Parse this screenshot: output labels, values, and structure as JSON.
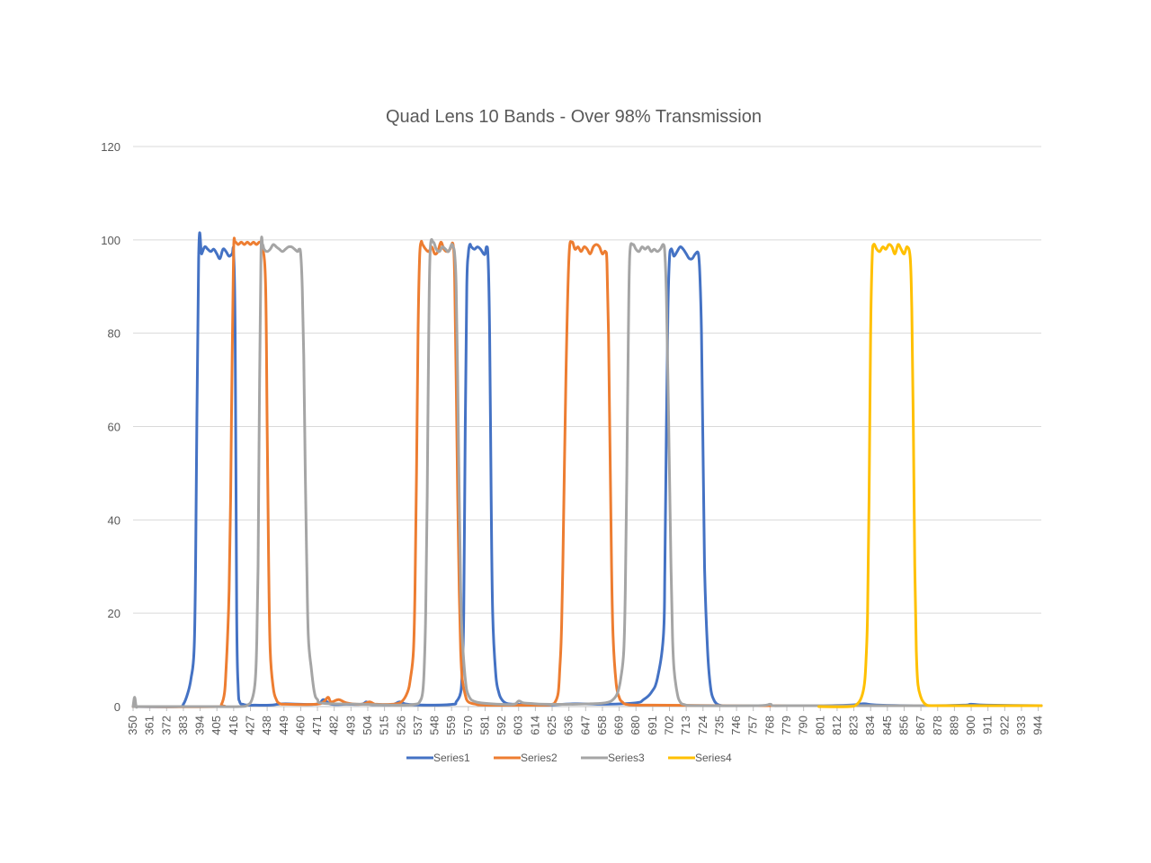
{
  "chart_data": {
    "type": "line",
    "title": "Quad Lens 10 Bands - Over 98% Transmission",
    "xlabel": "",
    "ylabel": "",
    "xlim": [
      350,
      946
    ],
    "ylim": [
      0,
      120
    ],
    "yticks": [
      0,
      20,
      40,
      60,
      80,
      100,
      120
    ],
    "xticks": [
      350,
      361,
      372,
      383,
      394,
      405,
      416,
      427,
      438,
      449,
      460,
      471,
      482,
      493,
      504,
      515,
      526,
      537,
      548,
      559,
      570,
      581,
      592,
      603,
      614,
      625,
      636,
      647,
      658,
      669,
      680,
      691,
      702,
      713,
      724,
      735,
      746,
      757,
      768,
      779,
      790,
      801,
      812,
      823,
      834,
      845,
      856,
      867,
      878,
      889,
      900,
      911,
      922,
      933,
      944
    ],
    "grid": "horizontal",
    "legend": "bottom",
    "series": [
      {
        "name": "Series1",
        "color": "#4472C4",
        "x": [
          350,
          380,
          383,
          386,
          388,
          390,
          391,
          393,
          395,
          397,
          399,
          401,
          403,
          405,
          407,
          409,
          411,
          413,
          415,
          416,
          417,
          418,
          419,
          420,
          422,
          425,
          430,
          440,
          445,
          450,
          470,
          475,
          480,
          490,
          500,
          503,
          505,
          510,
          520,
          525,
          530,
          545,
          560,
          562,
          565,
          566,
          567,
          568,
          569,
          570,
          571,
          572,
          574,
          576,
          578,
          580,
          581,
          582,
          583,
          584,
          585,
          586,
          588,
          590,
          592,
          595,
          600,
          610,
          620,
          640,
          660,
          680,
          685,
          690,
          694,
          698,
          699,
          700,
          701,
          702,
          703,
          704,
          705,
          707,
          709,
          711,
          713,
          715,
          717,
          719,
          721,
          722,
          723,
          724,
          725,
          727,
          729,
          731,
          733,
          735,
          737,
          740,
          745,
          760,
          800,
          820,
          826,
          830,
          840,
          870,
          895,
          900,
          910,
          946
        ],
        "y": [
          0,
          0,
          0.5,
          3,
          6,
          12,
          30,
          96,
          97,
          98.5,
          98,
          97.5,
          98,
          97,
          96,
          98,
          97.5,
          96.5,
          97,
          97,
          80,
          20,
          4,
          1,
          0.5,
          0.3,
          0.3,
          0.3,
          0.5,
          0.6,
          0.5,
          1.5,
          0.5,
          0.5,
          0.5,
          1,
          0.5,
          0.4,
          0.4,
          1,
          0.5,
          0.3,
          0.5,
          1,
          3,
          8,
          20,
          60,
          90,
          97,
          99,
          98.5,
          98,
          98.5,
          98,
          97,
          97,
          98.5,
          96,
          80,
          45,
          20,
          7,
          3,
          1.5,
          0.7,
          0.5,
          0.4,
          0.3,
          0.6,
          0.5,
          0.8,
          1.5,
          3,
          6,
          15,
          30,
          60,
          85,
          96,
          98,
          97.5,
          96.5,
          97.5,
          98.5,
          98,
          97,
          96,
          96,
          97,
          97,
          92,
          80,
          55,
          30,
          12,
          4,
          1.5,
          0.6,
          0.3,
          0.2,
          0.2,
          0.2,
          0.2,
          0.2,
          0.3,
          0.5,
          0.6,
          0.3,
          0.2,
          0.3,
          0.5,
          0.3,
          0.2
        ]
      },
      {
        "name": "Series2",
        "color": "#ED7D31",
        "x": [
          350,
          405,
          408,
          410,
          411,
          412,
          413,
          414,
          415,
          416,
          417,
          419,
          421,
          423,
          425,
          427,
          429,
          431,
          433,
          435,
          437,
          438,
          439,
          440,
          442,
          444,
          446,
          450,
          470,
          475,
          478,
          480,
          485,
          490,
          500,
          505,
          508,
          510,
          520,
          526,
          530,
          532,
          534,
          535,
          536,
          537,
          538,
          539,
          540,
          542,
          544,
          546,
          548,
          550,
          552,
          554,
          556,
          558,
          560,
          561,
          562,
          563,
          564,
          565,
          566,
          568,
          570,
          575,
          580,
          600,
          620,
          625,
          627,
          629,
          630,
          631,
          632,
          634,
          636,
          638,
          640,
          642,
          644,
          646,
          648,
          650,
          652,
          654,
          656,
          658,
          660,
          661,
          662,
          663,
          664,
          665,
          667,
          669,
          671,
          675,
          690,
          740,
          800,
          946
        ],
        "y": [
          0,
          0,
          0.5,
          3,
          8,
          15,
          25,
          45,
          75,
          98,
          99.5,
          99,
          99.5,
          99,
          99.5,
          99,
          99.5,
          99,
          99.5,
          98.5,
          90,
          60,
          30,
          12,
          4,
          1.5,
          0.7,
          0.5,
          0.5,
          1,
          2,
          1,
          1.5,
          0.8,
          0.5,
          1,
          0.6,
          0.5,
          0.5,
          1,
          3,
          6,
          12,
          25,
          50,
          80,
          96,
          99.5,
          99,
          98,
          97.5,
          98.5,
          97,
          97.5,
          99.5,
          98,
          97.5,
          98,
          99,
          92,
          70,
          45,
          25,
          12,
          6,
          2.5,
          1,
          0.5,
          0.3,
          0.3,
          0.3,
          0.5,
          1,
          3,
          8,
          15,
          30,
          70,
          96,
          99.5,
          98,
          98.5,
          97.5,
          98.5,
          98,
          97,
          98.5,
          99,
          98.5,
          97,
          97.5,
          95,
          80,
          55,
          30,
          15,
          5,
          2,
          1,
          0.4,
          0.3,
          0.2,
          0.2,
          0.2
        ]
      },
      {
        "name": "Series3",
        "color": "#A5A5A5",
        "x": [
          350,
          351,
          352,
          353,
          355,
          400,
          420,
          425,
          428,
          430,
          431,
          432,
          433,
          434,
          435,
          436,
          438,
          440,
          442,
          444,
          446,
          448,
          450,
          452,
          454,
          456,
          458,
          459,
          460,
          461,
          462,
          463,
          464,
          465,
          467,
          469,
          471,
          475,
          500,
          525,
          535,
          538,
          540,
          541,
          542,
          543,
          544,
          545,
          547,
          549,
          551,
          553,
          555,
          557,
          559,
          560,
          561,
          562,
          563,
          564,
          565,
          566,
          568,
          570,
          575,
          590,
          600,
          603,
          606,
          610,
          620,
          640,
          650,
          660,
          665,
          668,
          670,
          672,
          673,
          674,
          675,
          676,
          678,
          680,
          682,
          684,
          686,
          688,
          690,
          692,
          694,
          696,
          698,
          699,
          700,
          701,
          702,
          703,
          704,
          705,
          707,
          709,
          712,
          720,
          760,
          768,
          770,
          780,
          830,
          870,
          946
        ],
        "y": [
          0,
          2,
          0,
          0,
          0,
          0,
          0,
          0.3,
          1.5,
          5,
          12,
          30,
          70,
          98,
          99,
          98,
          97.5,
          98,
          99,
          98.5,
          98,
          97.5,
          98,
          98.5,
          98.5,
          98,
          97.5,
          98,
          97,
          90,
          75,
          50,
          30,
          15,
          8,
          3,
          1.5,
          0.7,
          0.5,
          0.3,
          0.5,
          1,
          3,
          8,
          20,
          45,
          80,
          98,
          99.5,
          98,
          97.5,
          98.5,
          98,
          97.5,
          99,
          98.5,
          97,
          90,
          70,
          45,
          25,
          15,
          6,
          2.5,
          1,
          0.5,
          0.5,
          1.2,
          0.8,
          0.7,
          0.5,
          0.5,
          0.6,
          0.8,
          1.5,
          3,
          6,
          12,
          25,
          50,
          80,
          97,
          99,
          98,
          97.5,
          98.5,
          98,
          98.5,
          97.5,
          98,
          97.5,
          98,
          99,
          97,
          88,
          70,
          50,
          30,
          15,
          8,
          3,
          1,
          0.4,
          0.2,
          0.2,
          0.5,
          0.2,
          0.2,
          0.2,
          0.2,
          0.2
        ]
      },
      {
        "name": "Series4",
        "color": "#FFC000",
        "x": [
          800,
          820,
          825,
          828,
          830,
          831,
          832,
          833,
          834,
          835,
          836,
          838,
          840,
          842,
          844,
          846,
          848,
          850,
          852,
          854,
          856,
          858,
          860,
          861,
          862,
          863,
          864,
          865,
          867,
          869,
          871,
          875,
          885,
          946
        ],
        "y": [
          0,
          0,
          0.5,
          2,
          5,
          10,
          20,
          45,
          80,
          96,
          99,
          98,
          97.5,
          98.5,
          98,
          99,
          98.5,
          97,
          99,
          98,
          97,
          98.5,
          96,
          85,
          60,
          30,
          12,
          5,
          2,
          0.8,
          0.3,
          0.2,
          0.2,
          0.2
        ]
      }
    ]
  }
}
